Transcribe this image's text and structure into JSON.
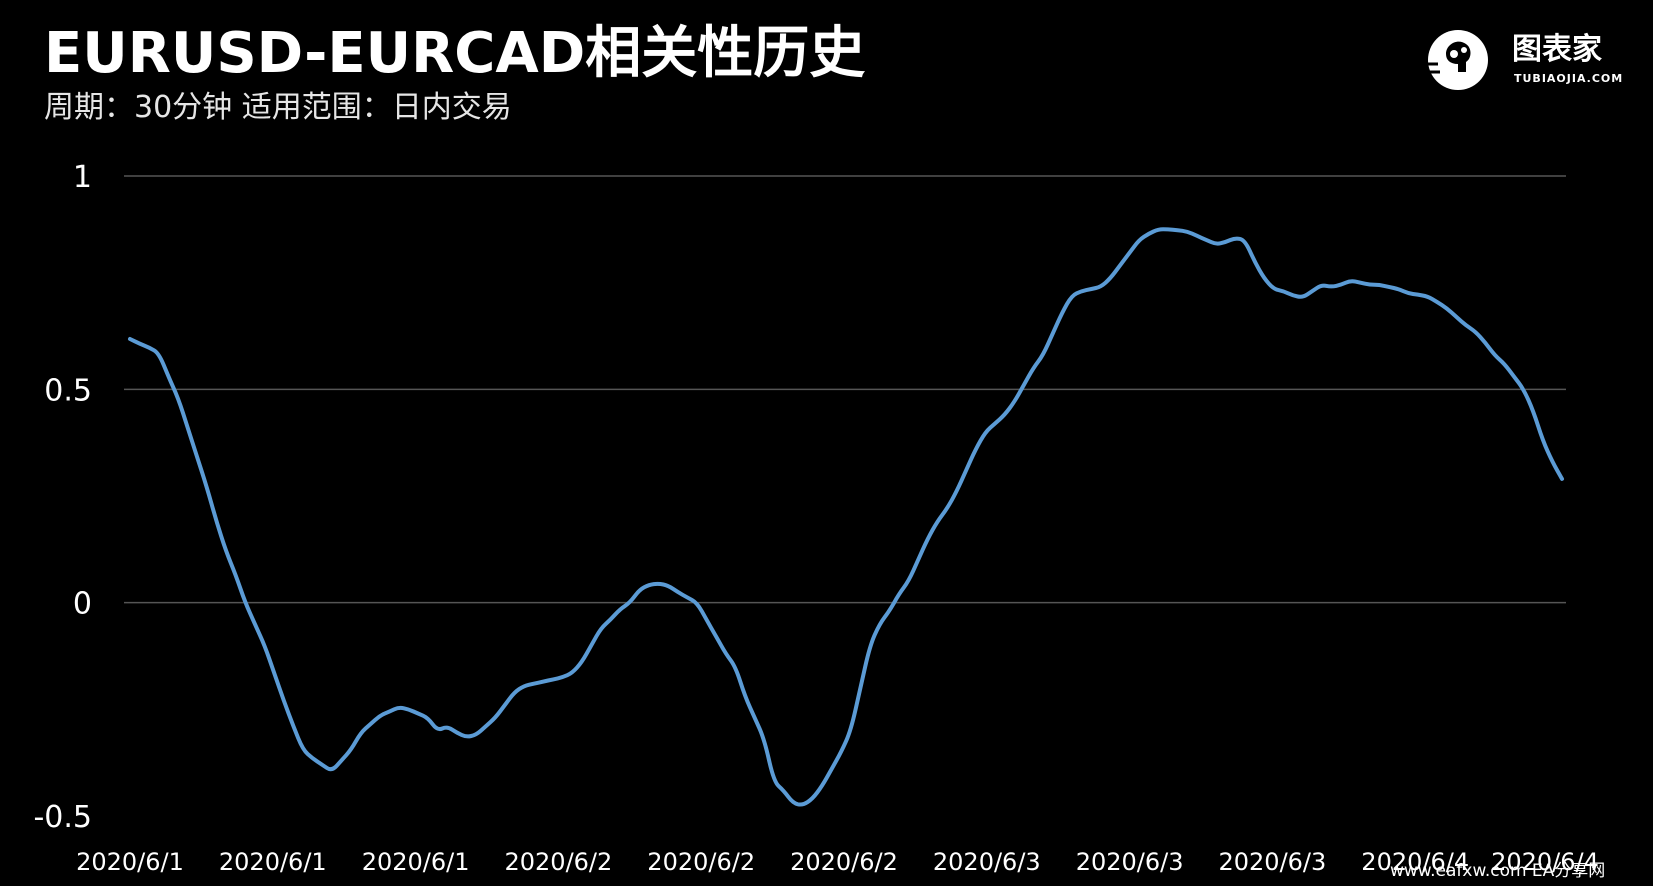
{
  "header": {
    "title": "EURUSD-EURCAD相关性历史",
    "subtitle": "周期：30分钟  适用范围：日内交易"
  },
  "logo": {
    "text": "图表家",
    "sub": "TUBIAOJIA.COM",
    "icon": "head-brain-icon"
  },
  "watermark": "www.eafxw.com   EA分享网",
  "colors": {
    "background": "#000000",
    "line": "#5b9bd5",
    "grid": "#555555",
    "text": "#ffffff"
  },
  "chart_data": {
    "type": "line",
    "title": "EURUSD-EURCAD相关性历史",
    "xlabel": "",
    "ylabel": "",
    "ylim": [
      -0.5,
      1
    ],
    "yticks": [
      1,
      0.5,
      0,
      -0.5
    ],
    "ytick_labels": [
      "1",
      "0.5",
      "0",
      "-0.5"
    ],
    "xtick_labels": [
      "2020/6/1",
      "2020/6/1",
      "2020/6/1",
      "2020/6/2",
      "2020/6/2",
      "2020/6/2",
      "2020/6/3",
      "2020/6/3",
      "2020/6/3",
      "2020/6/4",
      "2020/6/4"
    ],
    "grid": true,
    "legend": "none",
    "series": [
      {
        "values": [
          0.618,
          0.607,
          0.598,
          0.585,
          0.53,
          0.48,
          0.41,
          0.34,
          0.27,
          0.19,
          0.12,
          0.065,
          0.0,
          -0.05,
          -0.1,
          -0.165,
          -0.23,
          -0.29,
          -0.345,
          -0.365,
          -0.38,
          -0.395,
          -0.37,
          -0.345,
          -0.305,
          -0.285,
          -0.265,
          -0.255,
          -0.245,
          -0.25,
          -0.26,
          -0.27,
          -0.3,
          -0.29,
          -0.305,
          -0.315,
          -0.31,
          -0.29,
          -0.27,
          -0.24,
          -0.21,
          -0.195,
          -0.19,
          -0.185,
          -0.18,
          -0.175,
          -0.165,
          -0.14,
          -0.1,
          -0.06,
          -0.04,
          -0.015,
          0.0,
          0.03,
          0.042,
          0.045,
          0.04,
          0.025,
          0.012,
          0.0,
          -0.04,
          -0.08,
          -0.12,
          -0.15,
          -0.22,
          -0.27,
          -0.32,
          -0.42,
          -0.44,
          -0.47,
          -0.475,
          -0.46,
          -0.43,
          -0.39,
          -0.35,
          -0.3,
          -0.2,
          -0.1,
          -0.05,
          -0.02,
          0.02,
          0.05,
          0.1,
          0.15,
          0.19,
          0.22,
          0.26,
          0.31,
          0.36,
          0.4,
          0.42,
          0.44,
          0.47,
          0.51,
          0.55,
          0.58,
          0.63,
          0.68,
          0.72,
          0.73,
          0.735,
          0.74,
          0.76,
          0.79,
          0.82,
          0.85,
          0.865,
          0.875,
          0.875,
          0.873,
          0.87,
          0.86,
          0.85,
          0.84,
          0.845,
          0.855,
          0.85,
          0.8,
          0.76,
          0.735,
          0.73,
          0.72,
          0.715,
          0.73,
          0.745,
          0.74,
          0.745,
          0.755,
          0.75,
          0.745,
          0.745,
          0.74,
          0.735,
          0.725,
          0.722,
          0.718,
          0.705,
          0.69,
          0.67,
          0.65,
          0.635,
          0.61,
          0.58,
          0.56,
          0.53,
          0.5,
          0.45,
          0.38,
          0.33,
          0.29
        ]
      }
    ]
  }
}
